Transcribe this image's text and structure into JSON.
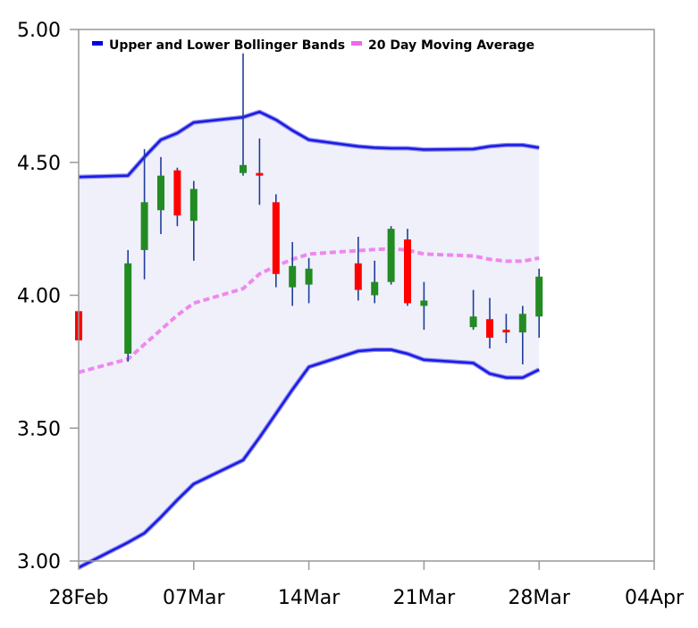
{
  "chart_data": {
    "type": "candlestick",
    "x_ticks": [
      "28Feb",
      "07Mar",
      "14Mar",
      "21Mar",
      "28Mar",
      "04Apr"
    ],
    "y_ticks": [
      "3.00",
      "3.50",
      "4.00",
      "4.50",
      "5.00"
    ],
    "ylim": [
      3.0,
      5.0
    ],
    "xlim": [
      "2022-02-28",
      "2022-04-04"
    ],
    "legend": {
      "placement": "top-left",
      "items": [
        {
          "label": "Upper and Lower Bollinger Bands",
          "color": "#0000e6"
        },
        {
          "label": "20 Day Moving Average",
          "color": "#ee66ee"
        }
      ]
    },
    "colors": {
      "up": "#228b22",
      "down": "#ff0000",
      "wick": "#1f3d99",
      "band_line": "#1a1ae6",
      "band_fill": "#eff0fa",
      "moving_average": "#ee88ee",
      "frame": "#999999"
    },
    "candles": [
      {
        "date": "2022-02-28",
        "open": 3.94,
        "high": 3.94,
        "low": 3.83,
        "close": 3.83
      },
      {
        "date": "2022-03-03",
        "open": 3.78,
        "high": 4.17,
        "low": 3.75,
        "close": 4.12
      },
      {
        "date": "2022-03-04",
        "open": 4.17,
        "high": 4.55,
        "low": 4.06,
        "close": 4.35
      },
      {
        "date": "2022-03-05",
        "open": 4.32,
        "high": 4.52,
        "low": 4.23,
        "close": 4.45
      },
      {
        "date": "2022-03-06",
        "open": 4.47,
        "high": 4.48,
        "low": 4.26,
        "close": 4.3
      },
      {
        "date": "2022-03-07",
        "open": 4.28,
        "high": 4.43,
        "low": 4.13,
        "close": 4.4
      },
      {
        "date": "2022-03-10",
        "open": 4.46,
        "high": 4.91,
        "low": 4.45,
        "close": 4.49
      },
      {
        "date": "2022-03-11",
        "open": 4.46,
        "high": 4.59,
        "low": 4.34,
        "close": 4.45
      },
      {
        "date": "2022-03-12",
        "open": 4.35,
        "high": 4.38,
        "low": 4.03,
        "close": 4.08
      },
      {
        "date": "2022-03-13",
        "open": 4.03,
        "high": 4.2,
        "low": 3.96,
        "close": 4.11
      },
      {
        "date": "2022-03-14",
        "open": 4.04,
        "high": 4.14,
        "low": 3.97,
        "close": 4.1
      },
      {
        "date": "2022-03-17",
        "open": 4.12,
        "high": 4.22,
        "low": 3.98,
        "close": 4.02
      },
      {
        "date": "2022-03-18",
        "open": 4.0,
        "high": 4.13,
        "low": 3.97,
        "close": 4.05
      },
      {
        "date": "2022-03-19",
        "open": 4.05,
        "high": 4.26,
        "low": 4.04,
        "close": 4.25
      },
      {
        "date": "2022-03-20",
        "open": 4.21,
        "high": 4.25,
        "low": 3.96,
        "close": 3.97
      },
      {
        "date": "2022-03-21",
        "open": 3.96,
        "high": 4.05,
        "low": 3.87,
        "close": 3.98
      },
      {
        "date": "2022-03-24",
        "open": 3.88,
        "high": 4.02,
        "low": 3.87,
        "close": 3.92
      },
      {
        "date": "2022-03-25",
        "open": 3.91,
        "high": 3.99,
        "low": 3.8,
        "close": 3.84
      },
      {
        "date": "2022-03-26",
        "open": 3.87,
        "high": 3.93,
        "low": 3.82,
        "close": 3.86
      },
      {
        "date": "2022-03-27",
        "open": 3.86,
        "high": 3.96,
        "low": 3.74,
        "close": 3.93
      },
      {
        "date": "2022-03-28",
        "open": 3.92,
        "high": 4.1,
        "low": 3.84,
        "close": 4.07
      }
    ],
    "upper_band": [
      {
        "date": "2022-02-28",
        "value": 4.445
      },
      {
        "date": "2022-03-03",
        "value": 4.45
      },
      {
        "date": "2022-03-04",
        "value": 4.52
      },
      {
        "date": "2022-03-05",
        "value": 4.585
      },
      {
        "date": "2022-03-06",
        "value": 4.61
      },
      {
        "date": "2022-03-07",
        "value": 4.65
      },
      {
        "date": "2022-03-10",
        "value": 4.67
      },
      {
        "date": "2022-03-11",
        "value": 4.69
      },
      {
        "date": "2022-03-12",
        "value": 4.66
      },
      {
        "date": "2022-03-13",
        "value": 4.62
      },
      {
        "date": "2022-03-14",
        "value": 4.585
      },
      {
        "date": "2022-03-17",
        "value": 4.56
      },
      {
        "date": "2022-03-18",
        "value": 4.555
      },
      {
        "date": "2022-03-19",
        "value": 4.553
      },
      {
        "date": "2022-03-20",
        "value": 4.553
      },
      {
        "date": "2022-03-21",
        "value": 4.548
      },
      {
        "date": "2022-03-24",
        "value": 4.55
      },
      {
        "date": "2022-03-25",
        "value": 4.56
      },
      {
        "date": "2022-03-26",
        "value": 4.565
      },
      {
        "date": "2022-03-27",
        "value": 4.565
      },
      {
        "date": "2022-03-28",
        "value": 4.555
      }
    ],
    "lower_band": [
      {
        "date": "2022-02-28",
        "value": 2.975
      },
      {
        "date": "2022-03-03",
        "value": 3.07
      },
      {
        "date": "2022-03-04",
        "value": 3.105
      },
      {
        "date": "2022-03-05",
        "value": 3.165
      },
      {
        "date": "2022-03-06",
        "value": 3.23
      },
      {
        "date": "2022-03-07",
        "value": 3.29
      },
      {
        "date": "2022-03-10",
        "value": 3.38
      },
      {
        "date": "2022-03-11",
        "value": 3.465
      },
      {
        "date": "2022-03-12",
        "value": 3.555
      },
      {
        "date": "2022-03-13",
        "value": 3.645
      },
      {
        "date": "2022-03-14",
        "value": 3.73
      },
      {
        "date": "2022-03-17",
        "value": 3.79
      },
      {
        "date": "2022-03-18",
        "value": 3.795
      },
      {
        "date": "2022-03-19",
        "value": 3.795
      },
      {
        "date": "2022-03-20",
        "value": 3.78
      },
      {
        "date": "2022-03-21",
        "value": 3.757
      },
      {
        "date": "2022-03-24",
        "value": 3.745
      },
      {
        "date": "2022-03-25",
        "value": 3.705
      },
      {
        "date": "2022-03-26",
        "value": 3.69
      },
      {
        "date": "2022-03-27",
        "value": 3.69
      },
      {
        "date": "2022-03-28",
        "value": 3.72
      }
    ],
    "moving_average": [
      {
        "date": "2022-02-28",
        "value": 3.71
      },
      {
        "date": "2022-03-03",
        "value": 3.76
      },
      {
        "date": "2022-03-04",
        "value": 3.815
      },
      {
        "date": "2022-03-05",
        "value": 3.87
      },
      {
        "date": "2022-03-06",
        "value": 3.925
      },
      {
        "date": "2022-03-07",
        "value": 3.97
      },
      {
        "date": "2022-03-10",
        "value": 4.025
      },
      {
        "date": "2022-03-11",
        "value": 4.08
      },
      {
        "date": "2022-03-12",
        "value": 4.11
      },
      {
        "date": "2022-03-13",
        "value": 4.135
      },
      {
        "date": "2022-03-14",
        "value": 4.155
      },
      {
        "date": "2022-03-17",
        "value": 4.168
      },
      {
        "date": "2022-03-18",
        "value": 4.172
      },
      {
        "date": "2022-03-19",
        "value": 4.175
      },
      {
        "date": "2022-03-20",
        "value": 4.17
      },
      {
        "date": "2022-03-21",
        "value": 4.155
      },
      {
        "date": "2022-03-24",
        "value": 4.148
      },
      {
        "date": "2022-03-25",
        "value": 4.135
      },
      {
        "date": "2022-03-26",
        "value": 4.128
      },
      {
        "date": "2022-03-27",
        "value": 4.128
      },
      {
        "date": "2022-03-28",
        "value": 4.14
      }
    ]
  }
}
